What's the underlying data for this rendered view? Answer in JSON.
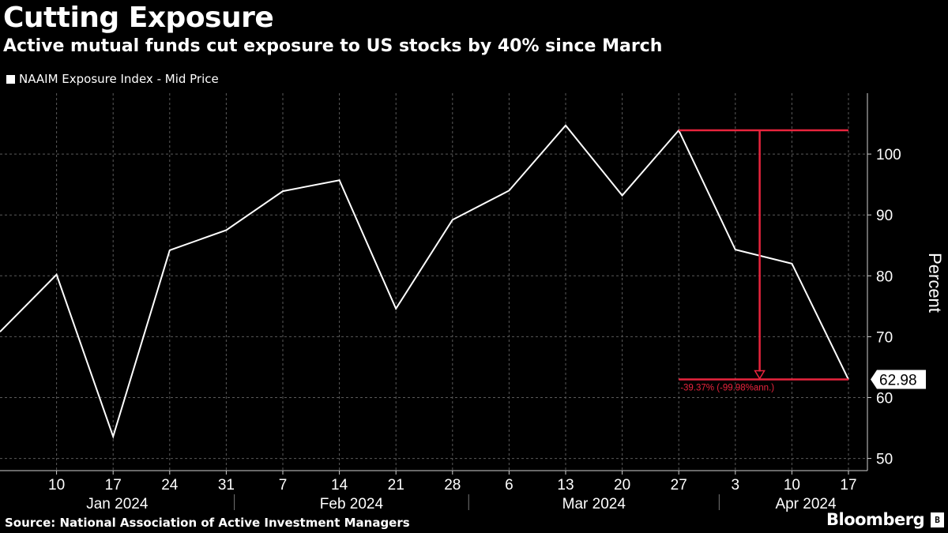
{
  "header": {
    "title": "Cutting Exposure",
    "subtitle": "Active mutual funds cut exposure to US stocks by 40% since March"
  },
  "footer": {
    "source": "Source: National Association of Active Investment Managers",
    "brand": "Bloomberg"
  },
  "chart_data": {
    "type": "line",
    "title": "Cutting Exposure",
    "subtitle": "Active mutual funds cut exposure to US stocks by 40% since March",
    "ylabel": "Percent",
    "ylim": [
      48,
      110
    ],
    "yticks": [
      50,
      60,
      70,
      80,
      90,
      100
    ],
    "grid": true,
    "legend_position": "top-left",
    "x_tick_labels": [
      "10",
      "17",
      "24",
      "31",
      "7",
      "14",
      "21",
      "28",
      "6",
      "13",
      "20",
      "27",
      "3",
      "10",
      "17"
    ],
    "x_month_labels": [
      "Jan 2024",
      "Feb 2024",
      "Mar 2024",
      "Apr 2024"
    ],
    "series": [
      {
        "name": "NAAIM Exposure Index - Mid Price",
        "color": "#ffffff",
        "x": [
          "2024-01-03",
          "2024-01-10",
          "2024-01-17",
          "2024-01-24",
          "2024-01-31",
          "2024-02-07",
          "2024-02-14",
          "2024-02-21",
          "2024-02-28",
          "2024-03-06",
          "2024-03-13",
          "2024-03-20",
          "2024-03-27",
          "2024-04-03",
          "2024-04-10",
          "2024-04-17"
        ],
        "values": [
          70.8,
          80.2,
          53.6,
          84.2,
          87.5,
          93.9,
          95.7,
          74.6,
          89.2,
          94.0,
          104.7,
          93.2,
          103.9,
          84.3,
          82.0,
          62.98
        ]
      }
    ],
    "last_value_label": "62.98",
    "annotation": {
      "label": "-39.37% (-99.98%ann.)",
      "from_value": 103.9,
      "to_value": 62.98,
      "color": "#e8243d"
    }
  }
}
